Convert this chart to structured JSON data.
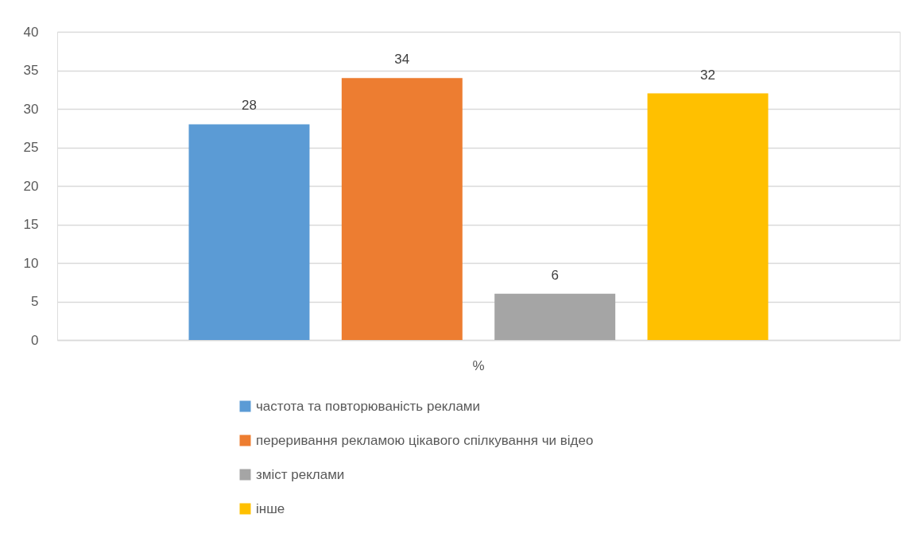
{
  "chart_data": {
    "type": "bar",
    "categories": [
      "%"
    ],
    "series": [
      {
        "name": "частота та повторюваність реклами",
        "color": "#5b9bd5",
        "values": [
          28
        ]
      },
      {
        "name": "переривання рекламою цікавого спілкування чи відео",
        "color": "#ed7d31",
        "values": [
          34
        ]
      },
      {
        "name": "зміст реклами",
        "color": "#a5a5a5",
        "values": [
          6
        ]
      },
      {
        "name": "інше",
        "color": "#ffc000",
        "values": [
          32
        ]
      }
    ],
    "ylim": [
      0,
      40
    ],
    "yticks": [
      0,
      5,
      10,
      15,
      20,
      25,
      30,
      35,
      40
    ],
    "grid": "y",
    "legend": "bottom",
    "data_labels": true
  }
}
